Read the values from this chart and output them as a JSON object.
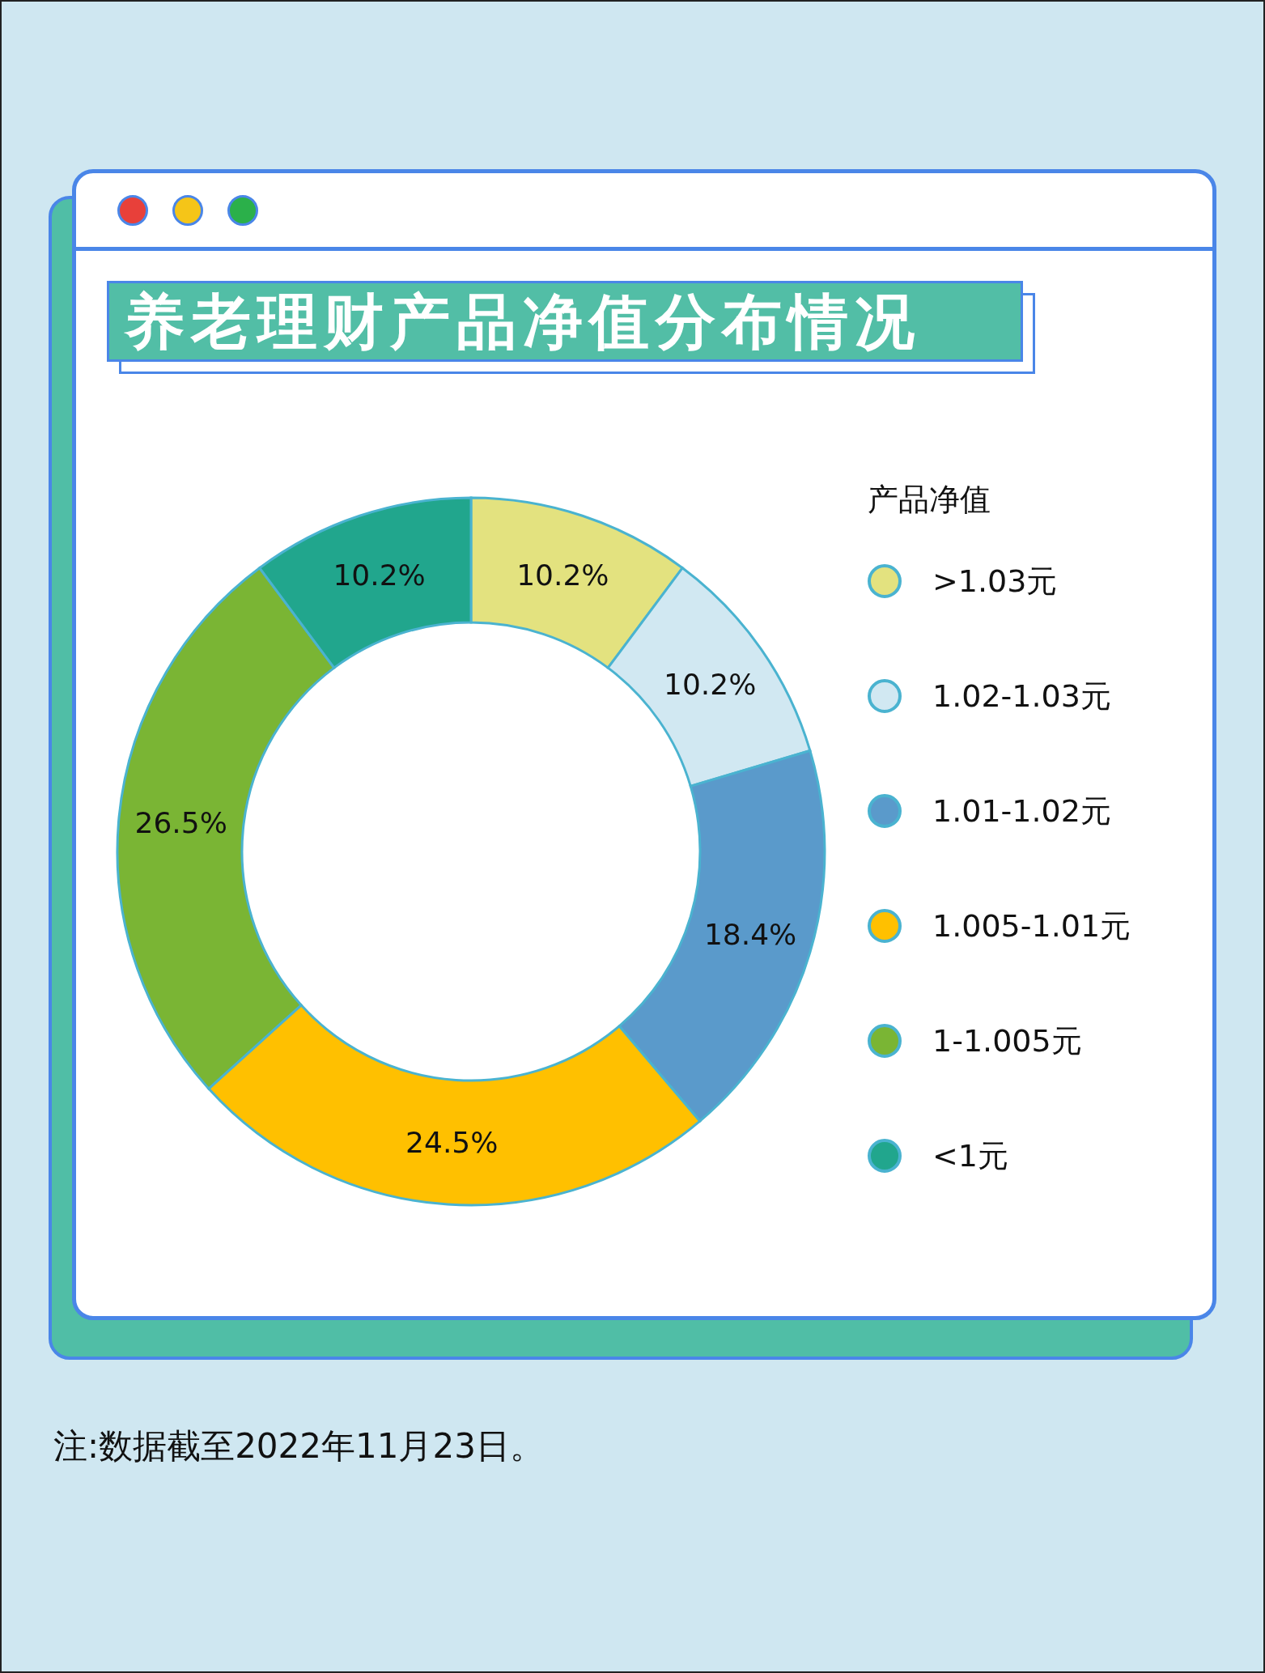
{
  "chart_data": {
    "type": "donut",
    "title": "养老理财产品净值分布情况",
    "legend_title": "产品净值",
    "categories": [
      ">1.03元",
      "1.02-1.03元",
      "1.01-1.02元",
      "1.005-1.01元",
      "1-1.005元",
      "<1元"
    ],
    "values": [
      10.2,
      10.2,
      18.4,
      24.5,
      26.5,
      10.2
    ],
    "colors": [
      "#e3e27f",
      "#d1e8f2",
      "#5a9acb",
      "#ffc000",
      "#7ab534",
      "#21a68d"
    ],
    "value_labels": [
      "10.2%",
      "10.2%",
      "18.4%",
      "24.5%",
      "26.5%",
      "10.2%"
    ],
    "legend": "right",
    "annotations": [
      "注:数据截至2022年11月23日。"
    ]
  }
}
